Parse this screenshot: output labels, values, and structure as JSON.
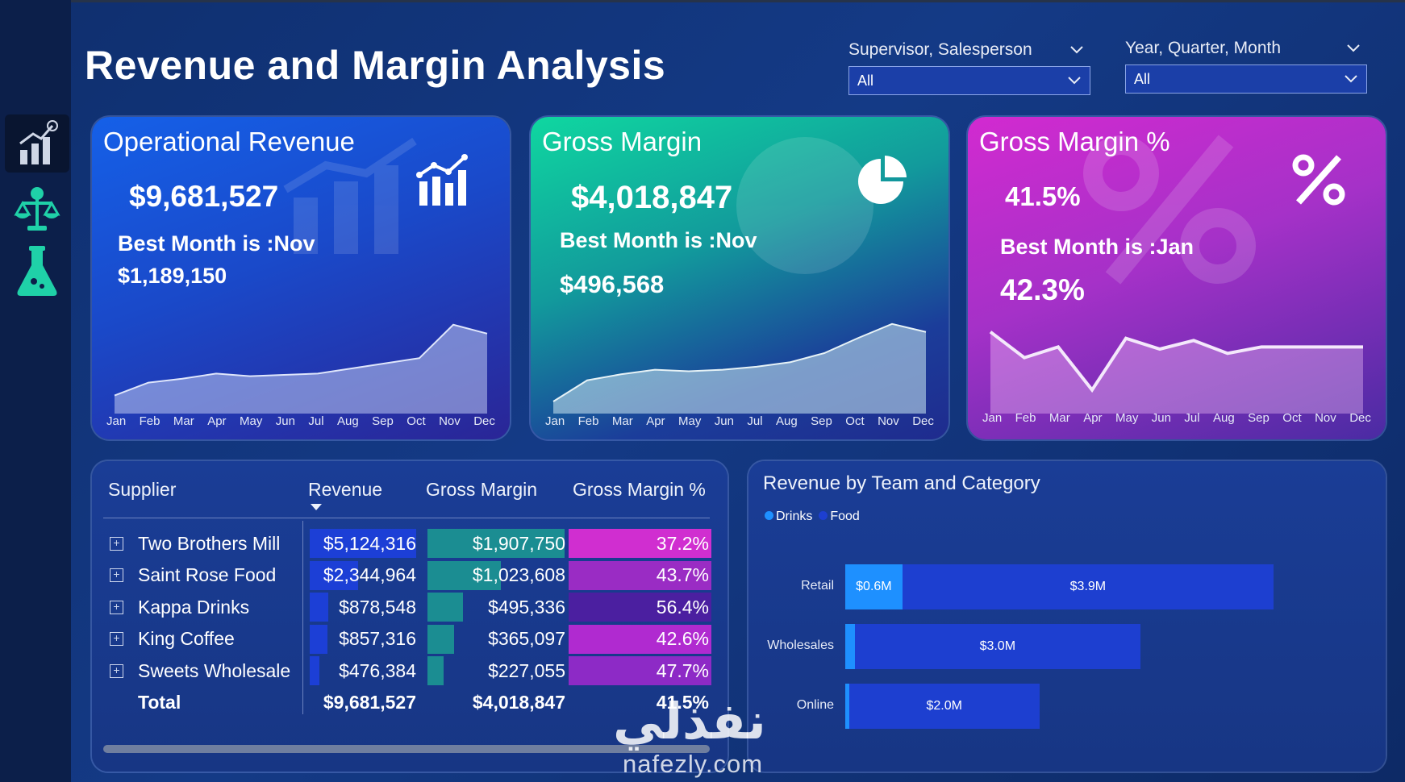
{
  "page": {
    "title": "Revenue and Margin Analysis"
  },
  "slicers": [
    {
      "label": "Supervisor, Salesperson",
      "value": "All"
    },
    {
      "label": "Year, Quarter, Month",
      "value": "All"
    }
  ],
  "sidebar": {
    "items": [
      "chart-icon",
      "balance-icon",
      "flask-icon"
    ]
  },
  "months": [
    "Jan",
    "Feb",
    "Mar",
    "Apr",
    "May",
    "Jun",
    "Jul",
    "Aug",
    "Sep",
    "Oct",
    "Nov",
    "Dec"
  ],
  "cards": {
    "revenue": {
      "title": "Operational Revenue",
      "value": "$9,681,527",
      "best_label": "Best Month is :Nov",
      "best_value": "$1,189,150"
    },
    "margin": {
      "title": "Gross Margin",
      "value": "$4,018,847",
      "best_label": "Best Month is :Nov",
      "best_value": "$496,568"
    },
    "margin_pct": {
      "title": "Gross Margin %",
      "value": "41.5%",
      "best_label": "Best Month is :Jan",
      "best_value": "42.3%"
    }
  },
  "table": {
    "headers": {
      "supplier": "Supplier",
      "revenue": "Revenue",
      "gross_margin": "Gross Margin",
      "gross_margin_pct": "Gross Margin %"
    },
    "rows": [
      {
        "supplier": "Two Brothers Mill",
        "revenue": "$5,124,316",
        "gross_margin": "$1,907,750",
        "gross_margin_pct": "37.2%"
      },
      {
        "supplier": "Saint Rose Food",
        "revenue": "$2,344,964",
        "gross_margin": "$1,023,608",
        "gross_margin_pct": "43.7%"
      },
      {
        "supplier": "Kappa Drinks",
        "revenue": "$878,548",
        "gross_margin": "$495,336",
        "gross_margin_pct": "56.4%"
      },
      {
        "supplier": "King Coffee",
        "revenue": "$857,316",
        "gross_margin": "$365,097",
        "gross_margin_pct": "42.6%"
      },
      {
        "supplier": "Sweets Wholesale",
        "revenue": "$476,384",
        "gross_margin": "$227,055",
        "gross_margin_pct": "47.7%"
      }
    ],
    "total": {
      "supplier": "Total",
      "revenue": "$9,681,527",
      "gross_margin": "$4,018,847",
      "gross_margin_pct": "41.5%"
    }
  },
  "team_chart": {
    "title": "Revenue by Team and Category",
    "legend": [
      "Drinks",
      "Food"
    ],
    "bars": [
      {
        "team": "Retail",
        "drinks_label": "$0.6M",
        "food_label": "$3.9M"
      },
      {
        "team": "Wholesales",
        "drinks_label": "",
        "food_label": "$3.0M"
      },
      {
        "team": "Online",
        "drinks_label": "",
        "food_label": "$2.0M"
      }
    ]
  },
  "watermark": {
    "arabic": "نفذلي",
    "latin": "nafezly.com"
  },
  "colors": {
    "drinks": "#1e90ff",
    "food": "#1d3fd0",
    "magenta": "#d62fd0"
  },
  "chart_data": [
    {
      "type": "area",
      "title": "Operational Revenue",
      "x": [
        "Jan",
        "Feb",
        "Mar",
        "Apr",
        "May",
        "Jun",
        "Jul",
        "Aug",
        "Sep",
        "Oct",
        "Nov",
        "Dec"
      ],
      "values": [
        640000,
        740000,
        770000,
        810000,
        790000,
        800000,
        810000,
        850000,
        890000,
        930000,
        1189150,
        1120000
      ],
      "ylim": [
        500000,
        1250000
      ]
    },
    {
      "type": "area",
      "title": "Gross Margin",
      "x": [
        "Jan",
        "Feb",
        "Mar",
        "Apr",
        "May",
        "Jun",
        "Jul",
        "Aug",
        "Sep",
        "Oct",
        "Nov",
        "Dec"
      ],
      "values": [
        240000,
        310000,
        330000,
        345000,
        340000,
        345000,
        355000,
        370000,
        400000,
        450000,
        496568,
        470000
      ],
      "ylim": [
        200000,
        520000
      ]
    },
    {
      "type": "area",
      "title": "Gross Margin %",
      "x": [
        "Jan",
        "Feb",
        "Mar",
        "Apr",
        "May",
        "Jun",
        "Jul",
        "Aug",
        "Sep",
        "Oct",
        "Nov",
        "Dec"
      ],
      "values": [
        42.3,
        41.1,
        41.6,
        39.6,
        42.0,
        41.5,
        41.9,
        41.3,
        41.6,
        41.6,
        41.6,
        41.6
      ],
      "ylim": [
        38.5,
        43.0
      ]
    },
    {
      "type": "bar",
      "title": "Revenue by Team and Category",
      "categories": [
        "Retail",
        "Wholesales",
        "Online"
      ],
      "series": [
        {
          "name": "Drinks",
          "values": [
            0.6,
            0.1,
            0.04
          ]
        },
        {
          "name": "Food",
          "values": [
            3.9,
            3.0,
            2.0
          ]
        }
      ],
      "xlim": [
        0,
        5
      ]
    },
    {
      "type": "table",
      "title": "Supplier",
      "categories": [
        "Two Brothers Mill",
        "Saint Rose Food",
        "Kappa Drinks",
        "King Coffee",
        "Sweets Wholesale"
      ],
      "series": [
        {
          "name": "Revenue",
          "values": [
            5124316,
            2344964,
            878548,
            857316,
            476384
          ]
        },
        {
          "name": "Gross Margin",
          "values": [
            1907750,
            1023608,
            495336,
            365097,
            227055
          ]
        },
        {
          "name": "Gross Margin %",
          "values": [
            37.2,
            43.7,
            56.4,
            42.6,
            47.7
          ]
        }
      ]
    }
  ]
}
